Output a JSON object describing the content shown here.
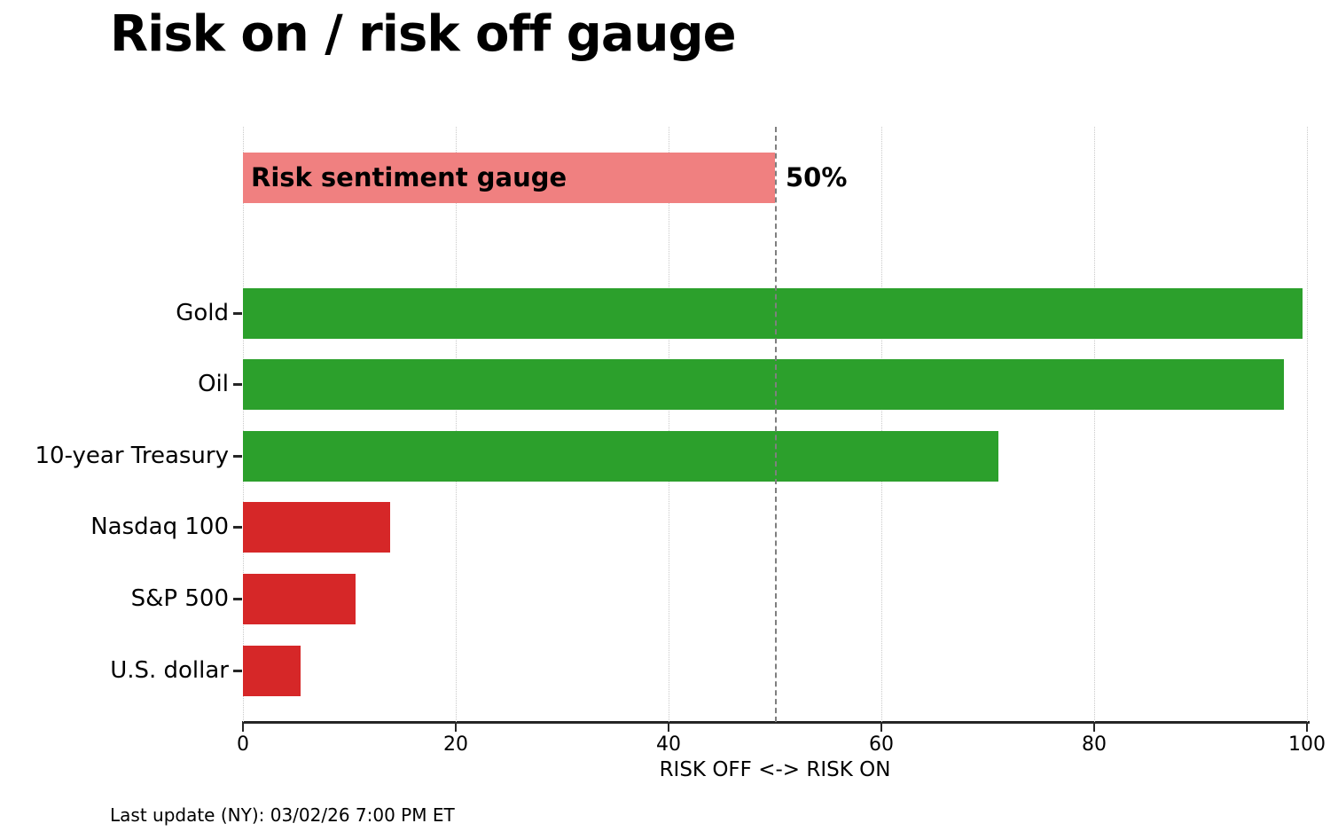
{
  "header": {
    "title": "Risk on / risk off gauge"
  },
  "footer": {
    "text": "Last update (NY): 03/02/26 7:00 PM ET"
  },
  "chart_data": {
    "type": "bar",
    "orientation": "horizontal",
    "title": "Risk on / risk off gauge",
    "xlabel": "RISK OFF <-> RISK ON",
    "ylabel": "",
    "xlim": [
      0,
      100
    ],
    "xticks": [
      0,
      20,
      40,
      60,
      80,
      100
    ],
    "grid": "vertical dotted gridlines at each x tick",
    "legend": "none",
    "categories": [
      "Gold",
      "Oil",
      "10-year Treasury",
      "Nasdaq 100",
      "S&P 500",
      "U.S. dollar"
    ],
    "values": [
      99.6,
      97.8,
      71,
      13.8,
      10.6,
      5.4
    ],
    "bar_colors": [
      "#2ca02c",
      "#2ca02c",
      "#2ca02c",
      "#d62728",
      "#d62728",
      "#d62728"
    ],
    "gauge_bar": {
      "label": "Risk sentiment gauge",
      "value": 50,
      "value_label": "50%",
      "color": "#f08080"
    },
    "reference_line": {
      "x": 50,
      "style": "dashed",
      "color": "#7f7f7f"
    },
    "colors": {
      "risk_on_green": "#2ca02c",
      "risk_off_red": "#d62728",
      "gauge_pink": "#f08080",
      "gridline_gray": "#c9c9c9",
      "axis_dark": "#262626"
    }
  }
}
